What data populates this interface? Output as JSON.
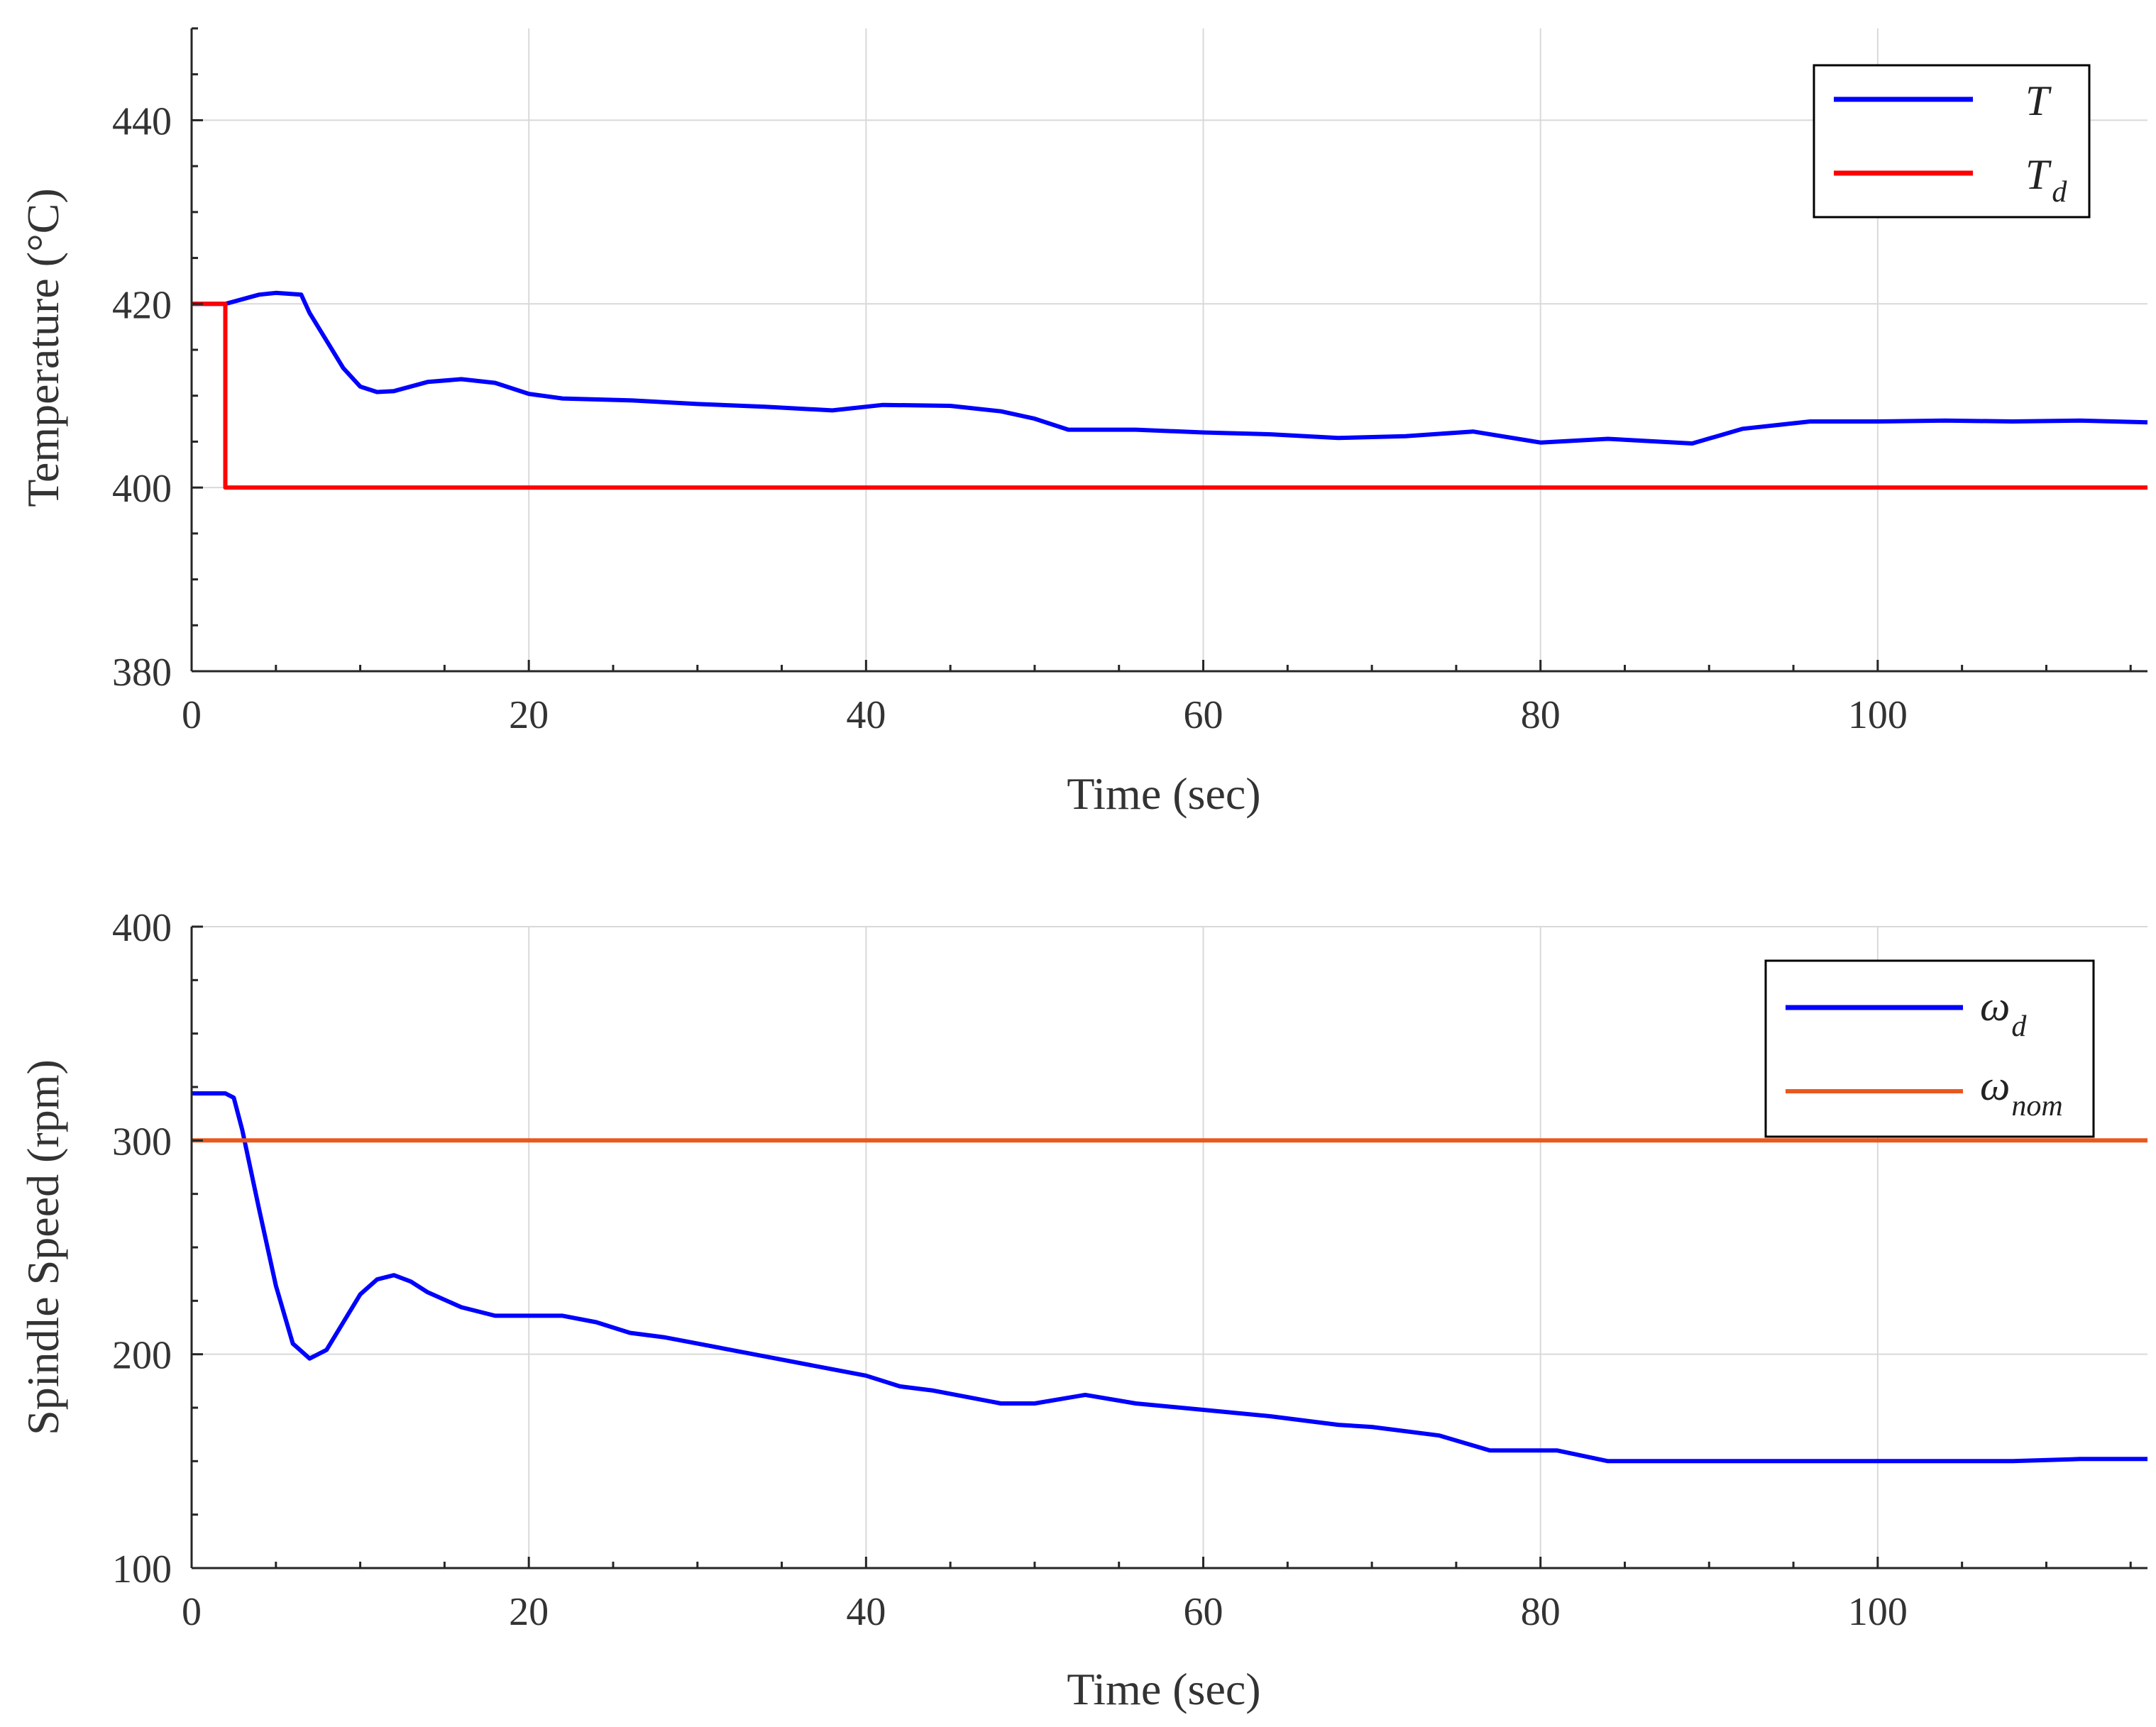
{
  "chart_data": [
    {
      "type": "line",
      "xlabel": "Time (sec)",
      "ylabel": "Temperature (°C)",
      "xlim": [
        0,
        116
      ],
      "ylim": [
        380,
        450
      ],
      "xticks": [
        0,
        20,
        40,
        60,
        80,
        100
      ],
      "yticks": [
        380,
        400,
        420,
        440
      ],
      "grid": true,
      "legend_position": "top-right",
      "series": [
        {
          "name": "T",
          "name_sub": "",
          "color": "#0000ff",
          "x": [
            0,
            2,
            4,
            5,
            6.5,
            7,
            8,
            9,
            10,
            11,
            12,
            14,
            16,
            18,
            20,
            22,
            26,
            30,
            34,
            38,
            41,
            45,
            48,
            50,
            52,
            56,
            60,
            64,
            68,
            72,
            76,
            80,
            84,
            89,
            92,
            96,
            100,
            104,
            108,
            112,
            116
          ],
          "y": [
            420,
            420,
            421,
            421.2,
            421,
            419,
            416,
            413,
            411,
            410.4,
            410.5,
            411.5,
            411.8,
            411.4,
            410.2,
            409.7,
            409.5,
            409.1,
            408.8,
            408.4,
            409,
            408.9,
            408.3,
            407.5,
            406.3,
            406.3,
            406,
            405.8,
            405.4,
            405.6,
            406.1,
            404.9,
            405.3,
            404.8,
            406.4,
            407.2,
            407.2,
            407.3,
            407.2,
            407.3,
            407.1
          ]
        },
        {
          "name": "T",
          "name_sub": "d",
          "color": "#ff0000",
          "x": [
            0,
            2,
            2,
            116
          ],
          "y": [
            420,
            420,
            400,
            400
          ]
        }
      ]
    },
    {
      "type": "line",
      "xlabel": "Time (sec)",
      "ylabel": "Spindle Speed (rpm)",
      "xlim": [
        0,
        116
      ],
      "ylim": [
        100,
        400
      ],
      "xticks": [
        0,
        20,
        40,
        60,
        80,
        100
      ],
      "yticks": [
        100,
        200,
        300,
        400
      ],
      "grid": true,
      "legend_position": "top-right",
      "series": [
        {
          "name": "ω",
          "name_sub": "d",
          "color": "#0000ff",
          "x": [
            0,
            2,
            2.5,
            3,
            4,
            5,
            6,
            7,
            8,
            9,
            10,
            11,
            12,
            13,
            14,
            16,
            18,
            20,
            22,
            24,
            26,
            28,
            30,
            34,
            38,
            40,
            42,
            44,
            46,
            48,
            50,
            53,
            56,
            60,
            64,
            68,
            70,
            74,
            77,
            81,
            84,
            88,
            92,
            96,
            100,
            104,
            108,
            112,
            116
          ],
          "y": [
            322,
            322,
            320,
            305,
            268,
            232,
            205,
            198,
            202,
            215,
            228,
            235,
            237,
            234,
            229,
            222,
            218,
            218,
            218,
            215,
            210,
            208,
            205,
            199,
            193,
            190,
            185,
            183,
            180,
            177,
            177,
            181,
            177,
            174,
            171,
            167,
            166,
            162,
            155,
            155,
            150,
            150,
            150,
            150,
            150,
            150,
            150,
            151,
            151
          ]
        },
        {
          "name": "ω",
          "name_sub": "nom",
          "color": "#e8581f",
          "x": [
            0,
            116
          ],
          "y": [
            300,
            300
          ]
        }
      ]
    }
  ]
}
